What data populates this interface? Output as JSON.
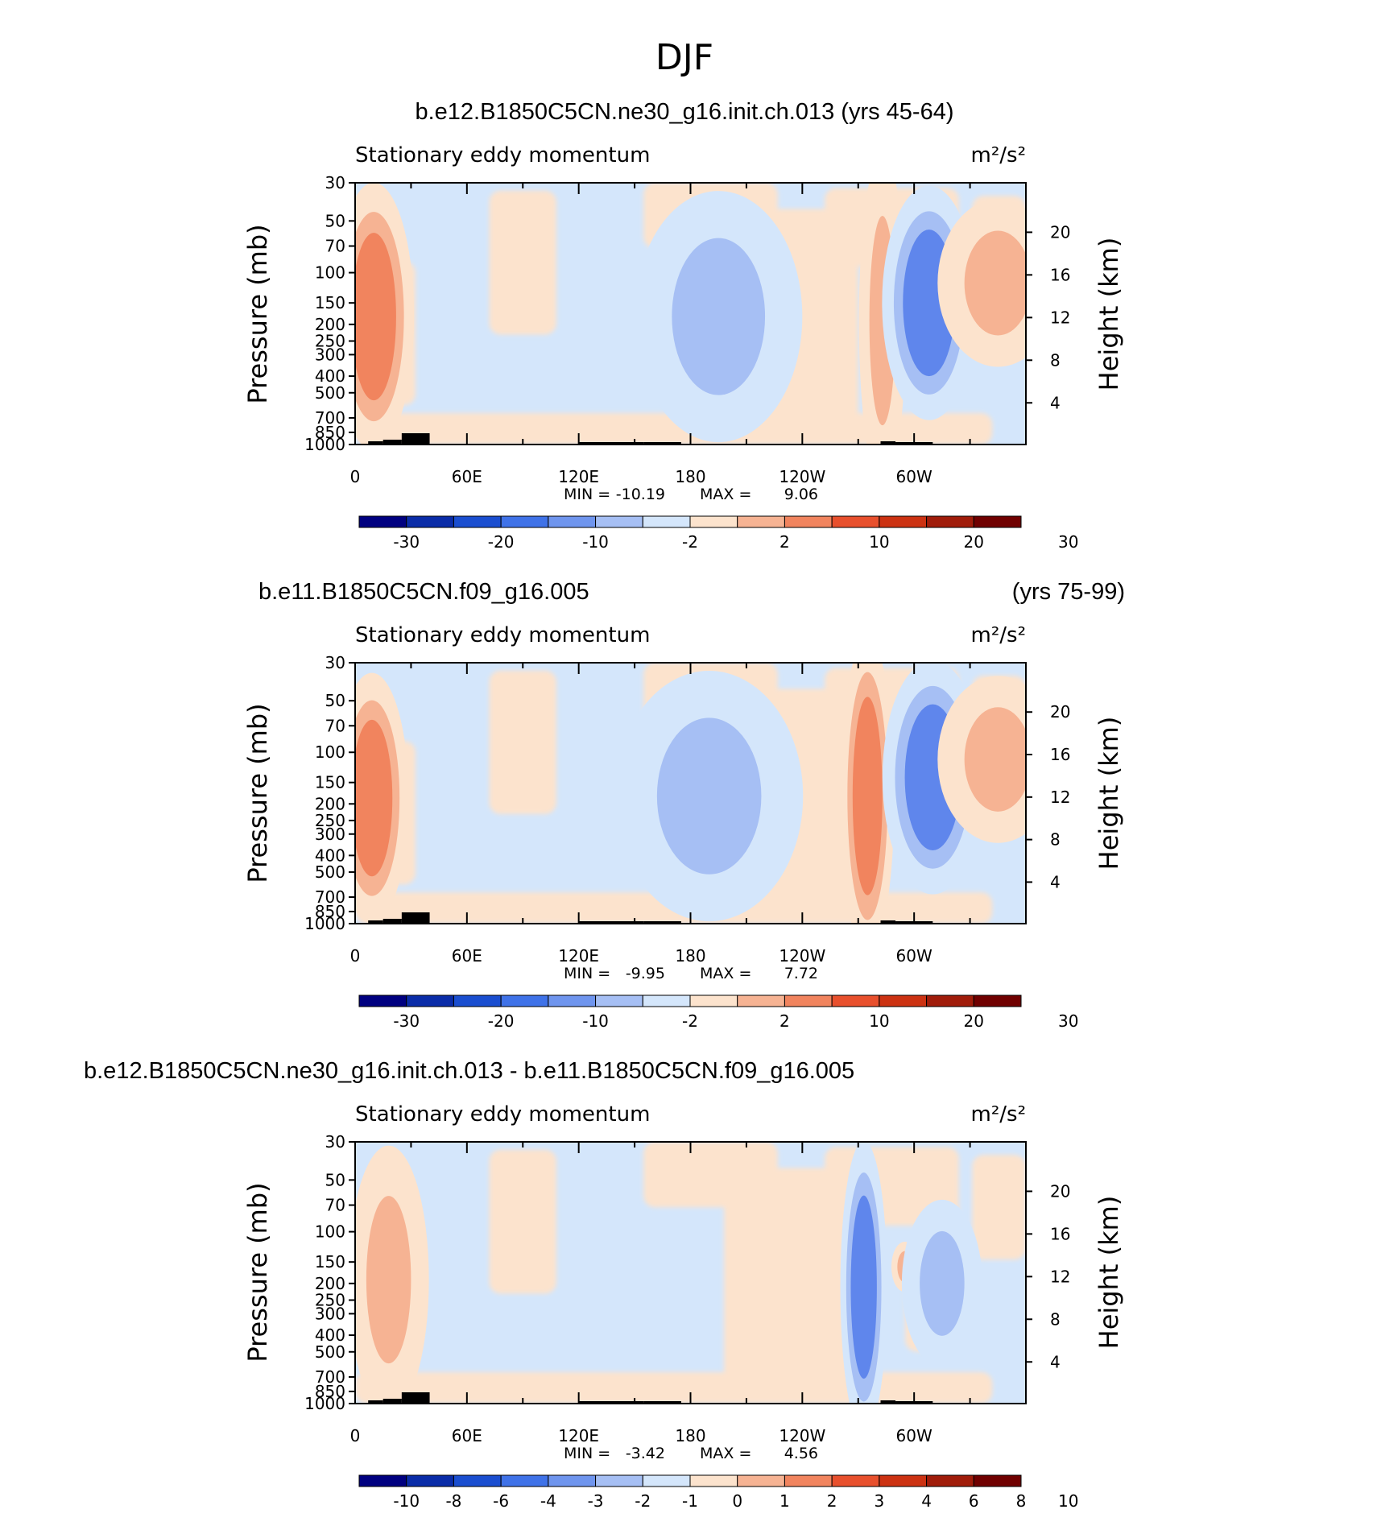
{
  "figure": {
    "title": "DJF"
  },
  "colors": {
    "strong_blue": "#2a56d8",
    "blue": "#5f86ec",
    "mid_blue": "#a6bff4",
    "light_blue": "#d4e6fb",
    "light_orange": "#fce3cd",
    "salmon": "#f6b393",
    "orange": "#f1845e",
    "topography": "#000000"
  },
  "colorbar_colors_14": [
    "#000080",
    "#0a2ca8",
    "#1a4ed0",
    "#3f72e8",
    "#6f95ee",
    "#a6bff4",
    "#d4e6fb",
    "#fce3cd",
    "#f6b393",
    "#f1845e",
    "#e8502d",
    "#cc3212",
    "#a01c0a",
    "#700000"
  ],
  "chart_data": [
    {
      "type": "heatmap",
      "panel_title_left": "b.e12.B1850C5CN.ne30_g16.init.ch.013 (yrs 45-64)",
      "panel_title_right": "",
      "inner_left": "Stationary eddy momentum",
      "units": "m²/s²",
      "ylabel_left": "Pressure (mb)",
      "ylabel_right": "Height (km)",
      "pressure_ticks": [
        "30",
        "50",
        "70",
        "100",
        "150",
        "200",
        "250",
        "300",
        "400",
        "500",
        "700",
        "850",
        "1000"
      ],
      "pressure_values": [
        30,
        50,
        70,
        100,
        150,
        200,
        250,
        300,
        400,
        500,
        700,
        850,
        1000
      ],
      "height_ticks": [
        "4",
        "8",
        "12",
        "16",
        "20"
      ],
      "height_values": [
        4,
        8,
        12,
        16,
        20
      ],
      "lon_ticks": [
        "0",
        "60E",
        "120E",
        "180",
        "120W",
        "60W"
      ],
      "lon_values": [
        0,
        60,
        120,
        180,
        240,
        300
      ],
      "xlim": [
        0,
        360
      ],
      "ylim_mb": [
        1000,
        30
      ],
      "min_label": "MIN =",
      "min": "-10.19",
      "max_label": "MAX =",
      "max": "9.06",
      "colorbar_labels": [
        "-30",
        "-20",
        "-10",
        "-2",
        "2",
        "10",
        "20",
        "30"
      ],
      "colorbar_label_boundaries": [
        1,
        3,
        5,
        7,
        9,
        11,
        13,
        15
      ],
      "features": [
        {
          "lon": 10,
          "p": 180,
          "wlon": 12,
          "wp": 0.32,
          "level": 2
        },
        {
          "lon": 195,
          "p": 180,
          "wlon": 25,
          "wp": 0.3,
          "level": -1
        },
        {
          "lon": 283,
          "p": 190,
          "wlon": 7,
          "wp": 0.4,
          "level": 1
        },
        {
          "lon": 308,
          "p": 150,
          "wlon": 14,
          "wp": 0.28,
          "level": -2
        },
        {
          "lon": 345,
          "p": 115,
          "wlon": 18,
          "wp": 0.2,
          "level": 1
        }
      ]
    },
    {
      "type": "heatmap",
      "panel_title_left": "b.e11.B1850C5CN.f09_g16.005",
      "panel_title_right": "(yrs 75-99)",
      "inner_left": "Stationary eddy momentum",
      "units": "m²/s²",
      "ylabel_left": "Pressure (mb)",
      "ylabel_right": "Height (km)",
      "pressure_ticks": [
        "30",
        "50",
        "70",
        "100",
        "150",
        "200",
        "250",
        "300",
        "400",
        "500",
        "700",
        "850",
        "1000"
      ],
      "pressure_values": [
        30,
        50,
        70,
        100,
        150,
        200,
        250,
        300,
        400,
        500,
        700,
        850,
        1000
      ],
      "height_ticks": [
        "4",
        "8",
        "12",
        "16",
        "20"
      ],
      "height_values": [
        4,
        8,
        12,
        16,
        20
      ],
      "lon_ticks": [
        "0",
        "60E",
        "120E",
        "180",
        "120W",
        "60W"
      ],
      "lon_values": [
        0,
        60,
        120,
        180,
        240,
        300
      ],
      "xlim": [
        0,
        360
      ],
      "ylim_mb": [
        1000,
        30
      ],
      "min_label": "MIN =",
      "min": "-9.95",
      "max_label": "MAX =",
      "max": "7.72",
      "colorbar_labels": [
        "-30",
        "-20",
        "-10",
        "-2",
        "2",
        "10",
        "20",
        "30"
      ],
      "colorbar_label_boundaries": [
        1,
        3,
        5,
        7,
        9,
        11,
        13,
        15
      ],
      "features": [
        {
          "lon": 9,
          "p": 185,
          "wlon": 11,
          "wp": 0.3,
          "level": 2
        },
        {
          "lon": 190,
          "p": 180,
          "wlon": 28,
          "wp": 0.3,
          "level": -1
        },
        {
          "lon": 275,
          "p": 180,
          "wlon": 8,
          "wp": 0.38,
          "level": 2
        },
        {
          "lon": 310,
          "p": 140,
          "wlon": 15,
          "wp": 0.28,
          "level": -2
        },
        {
          "lon": 345,
          "p": 110,
          "wlon": 18,
          "wp": 0.2,
          "level": 1
        }
      ]
    },
    {
      "type": "heatmap",
      "panel_title_left": "b.e12.B1850C5CN.ne30_g16.init.ch.013 - b.e11.B1850C5CN.f09_g16.005",
      "panel_title_right": "",
      "inner_left": "Stationary eddy momentum",
      "units": "m²/s²",
      "ylabel_left": "Pressure (mb)",
      "ylabel_right": "Height (km)",
      "pressure_ticks": [
        "30",
        "50",
        "70",
        "100",
        "150",
        "200",
        "250",
        "300",
        "400",
        "500",
        "700",
        "850",
        "1000"
      ],
      "pressure_values": [
        30,
        50,
        70,
        100,
        150,
        200,
        250,
        300,
        400,
        500,
        700,
        850,
        1000
      ],
      "height_ticks": [
        "4",
        "8",
        "12",
        "16",
        "20"
      ],
      "height_values": [
        4,
        8,
        12,
        16,
        20
      ],
      "lon_ticks": [
        "0",
        "60E",
        "120E",
        "180",
        "120W",
        "60W"
      ],
      "lon_values": [
        0,
        60,
        120,
        180,
        240,
        300
      ],
      "xlim": [
        0,
        360
      ],
      "ylim_mb": [
        1000,
        30
      ],
      "min_label": "MIN =",
      "min": "-3.42",
      "max_label": "MAX =",
      "max": "4.56",
      "colorbar_labels": [
        "-10",
        "-8",
        "-6",
        "-4",
        "-3",
        "-2",
        "-1",
        "0",
        "1",
        "2",
        "3",
        "4",
        "6",
        "8",
        "10"
      ],
      "colorbar_label_boundaries": [
        1,
        2,
        3,
        4,
        5,
        6,
        7,
        8,
        9,
        10,
        11,
        12,
        13,
        14,
        15
      ],
      "features": [
        {
          "lon": 18,
          "p": 190,
          "wlon": 12,
          "wp": 0.32,
          "level": 1
        },
        {
          "lon": 273,
          "p": 210,
          "wlon": 7,
          "wp": 0.35,
          "level": -2
        },
        {
          "lon": 295,
          "p": 160,
          "wlon": 4,
          "wp": 0.06,
          "level": 1
        },
        {
          "lon": 315,
          "p": 200,
          "wlon": 12,
          "wp": 0.2,
          "level": -1
        }
      ]
    }
  ]
}
